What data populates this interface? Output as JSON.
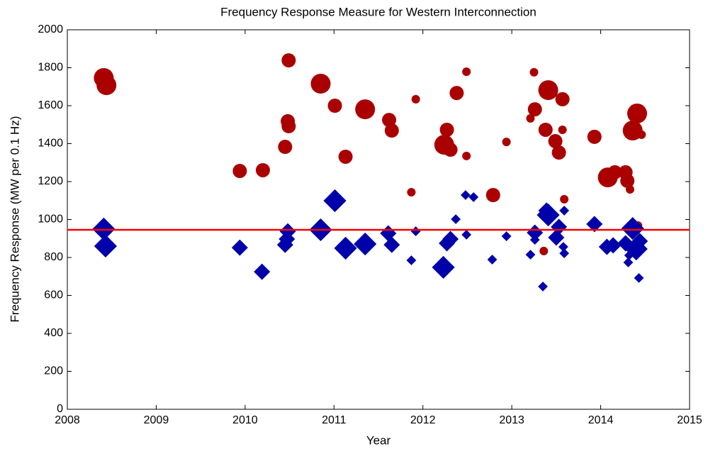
{
  "chart_data": {
    "type": "scatter",
    "title": "Frequency Response Measure for Western Interconnection",
    "x_label": "Year",
    "y_label": "Frequency Response (MW per 0.1 Hz)",
    "xlim": [
      2008,
      2015
    ],
    "xticks": [
      2008,
      2009,
      2010,
      2011,
      2012,
      2013,
      2014,
      2015
    ],
    "ylim": [
      0,
      2000
    ],
    "yticks": [
      0,
      200,
      400,
      600,
      800,
      1000,
      1200,
      1400,
      1600,
      1800,
      2000
    ],
    "reference_line": {
      "value": 946,
      "color": "#ff0000"
    },
    "series": [
      {
        "color": "#aa0000",
        "marker": "circle",
        "x": [
          2008.41,
          2008.44,
          2009.94,
          2010.2,
          2010.49,
          2010.48,
          2010.49,
          2010.45,
          2010.85,
          2011.01,
          2011.13,
          2011.35,
          2011.62,
          2011.65,
          2011.87,
          2011.92,
          2012.24,
          2012.27,
          2012.31,
          2012.38,
          2012.49,
          2012.49,
          2012.79,
          2012.94,
          2013.21,
          2013.25,
          2013.26,
          2013.36,
          2013.41,
          2013.38,
          2013.49,
          2013.53,
          2013.57,
          2013.57,
          2013.59,
          2013.93,
          2014.08,
          2014.16,
          2014.28,
          2014.3,
          2014.33,
          2014.36,
          2014.41,
          2014.46,
          2014.42
        ],
        "values": [
          1746,
          1708,
          1256,
          1260,
          1839,
          1518,
          1492,
          1383,
          1716,
          1600,
          1331,
          1581,
          1525,
          1469,
          1144,
          1634,
          1394,
          1473,
          1368,
          1667,
          1779,
          1335,
          1129,
          1409,
          1533,
          1776,
          1581,
          834,
          1682,
          1473,
          1413,
          1353,
          1634,
          1473,
          1107,
          1436,
          1222,
          1249,
          1249,
          1204,
          1159,
          1469,
          1559,
          1447,
          968
        ],
        "sizes": [
          14,
          14,
          10,
          10,
          10,
          10,
          10,
          10,
          14,
          10,
          10,
          14,
          10,
          10,
          6,
          6,
          14,
          10,
          10,
          10,
          6,
          6,
          10,
          6,
          6,
          6,
          10,
          6,
          14,
          10,
          10,
          10,
          10,
          6,
          6,
          10,
          14,
          10,
          10,
          10,
          6,
          14,
          14,
          6,
          6
        ]
      },
      {
        "color": "#0000aa",
        "marker": "diamond",
        "x": [
          2008.41,
          2008.43,
          2009.94,
          2010.19,
          2010.48,
          2010.47,
          2010.45,
          2010.85,
          2011.01,
          2011.13,
          2011.35,
          2011.61,
          2011.65,
          2011.87,
          2011.92,
          2012.23,
          2012.27,
          2012.31,
          2012.37,
          2012.49,
          2012.48,
          2012.57,
          2012.78,
          2012.94,
          2013.21,
          2013.26,
          2013.26,
          2013.35,
          2013.41,
          2013.39,
          2013.5,
          2013.53,
          2013.59,
          2013.58,
          2013.59,
          2013.93,
          2014.07,
          2014.14,
          2014.28,
          2014.31,
          2014.32,
          2014.36,
          2014.4,
          2014.44,
          2014.43
        ],
        "values": [
          950,
          860,
          852,
          725,
          938,
          897,
          867,
          946,
          1099,
          849,
          871,
          927,
          867,
          785,
          938,
          748,
          875,
          897,
          1002,
          920,
          1129,
          1118,
          789,
          912,
          815,
          893,
          931,
          647,
          1024,
          1047,
          905,
          961,
          1047,
          856,
          822,
          976,
          856,
          864,
          875,
          774,
          811,
          953,
          845,
          886,
          692
        ],
        "sizes": [
          14,
          14,
          10,
          10,
          10,
          10,
          10,
          14,
          14,
          14,
          14,
          10,
          10,
          6,
          6,
          14,
          10,
          10,
          6,
          6,
          6,
          6,
          6,
          6,
          6,
          6,
          10,
          6,
          14,
          10,
          10,
          10,
          6,
          6,
          6,
          10,
          10,
          10,
          10,
          6,
          6,
          14,
          14,
          10,
          6
        ]
      }
    ]
  }
}
